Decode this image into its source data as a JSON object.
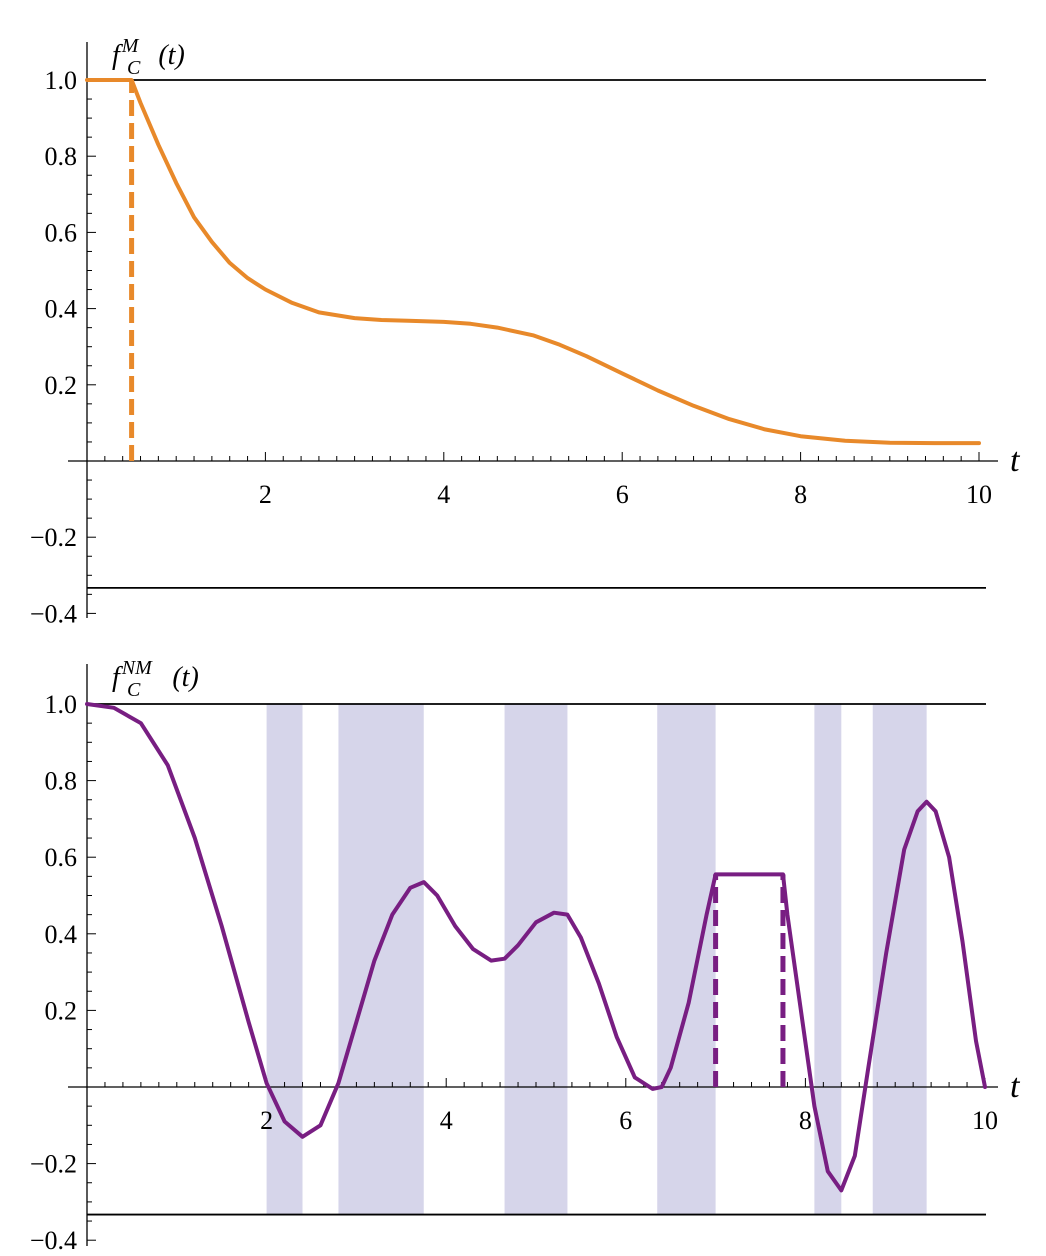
{
  "chart_data": [
    {
      "type": "line",
      "ylabel_main": "f",
      "ylabel_sub": "C",
      "ylabel_sup": "M",
      "ylabel_arg": "(t)",
      "xlabel": "t",
      "xlim": [
        0,
        10
      ],
      "ylim": [
        -0.34,
        1.0
      ],
      "x_ticks": [
        2,
        4,
        6,
        8,
        10
      ],
      "y_ticks": [
        1.0,
        0.8,
        0.6,
        0.4,
        0.2,
        -0.2,
        -0.4
      ],
      "y_tick_labels": [
        "1.0",
        "0.8",
        "0.6",
        "0.4",
        "0.2",
        "−0.2",
        "−0.4"
      ],
      "x_tick_labels": [
        "2",
        "4",
        "6",
        "8",
        "10"
      ],
      "reference_lines": [
        1.0,
        -0.333
      ],
      "series": [
        {
          "color": "#E8892A",
          "x": [
            0.0,
            0.5,
            0.6,
            0.8,
            1.0,
            1.2,
            1.4,
            1.6,
            1.8,
            2.0,
            2.3,
            2.6,
            3.0,
            3.3,
            3.6,
            4.0,
            4.3,
            4.6,
            5.0,
            5.3,
            5.6,
            6.0,
            6.4,
            6.8,
            7.2,
            7.6,
            8.0,
            8.5,
            9.0,
            9.5,
            10.0
          ],
          "y": [
            1.0,
            1.0,
            0.94,
            0.83,
            0.73,
            0.64,
            0.575,
            0.52,
            0.48,
            0.45,
            0.415,
            0.39,
            0.375,
            0.37,
            0.368,
            0.365,
            0.36,
            0.35,
            0.33,
            0.305,
            0.275,
            0.23,
            0.185,
            0.145,
            0.11,
            0.083,
            0.065,
            0.053,
            0.048,
            0.047,
            0.047
          ]
        }
      ],
      "dashed_markers": [
        {
          "x": 0.5,
          "y_from": 0.0,
          "y_to": 1.0,
          "color": "#E8892A"
        }
      ],
      "shaded_x_ranges": []
    },
    {
      "type": "line",
      "ylabel_main": "f",
      "ylabel_sub": "C",
      "ylabel_sup": "NM",
      "ylabel_arg": "(t)",
      "xlabel": "t",
      "xlim": [
        0,
        10
      ],
      "ylim": [
        -0.34,
        1.0
      ],
      "x_ticks": [
        2,
        4,
        6,
        8,
        10
      ],
      "y_ticks": [
        1.0,
        0.8,
        0.6,
        0.4,
        0.2,
        -0.2,
        -0.4
      ],
      "y_tick_labels": [
        "1.0",
        "0.8",
        "0.6",
        "0.4",
        "0.2",
        "−0.2",
        "−0.4"
      ],
      "x_tick_labels": [
        "2",
        "4",
        "6",
        "8",
        "10"
      ],
      "reference_lines": [
        1.0,
        -0.333
      ],
      "shade_color": "#D6D5EA",
      "shaded_x_ranges": [
        [
          2.0,
          2.4
        ],
        [
          2.8,
          3.75
        ],
        [
          4.65,
          5.35
        ],
        [
          6.35,
          7.0
        ],
        [
          8.1,
          8.4
        ],
        [
          8.75,
          9.35
        ]
      ],
      "series": [
        {
          "color": "#781E82",
          "x": [
            0.0,
            0.3,
            0.6,
            0.9,
            1.2,
            1.5,
            1.8,
            2.0,
            2.2,
            2.4,
            2.6,
            2.8,
            3.0,
            3.2,
            3.4,
            3.6,
            3.75,
            3.9,
            4.1,
            4.3,
            4.5,
            4.65,
            4.8,
            5.0,
            5.2,
            5.35,
            5.5,
            5.7,
            5.9,
            6.1,
            6.3,
            6.4,
            6.5,
            6.7,
            6.9,
            7.0,
            7.75,
            7.8,
            7.95,
            8.1,
            8.25,
            8.4,
            8.55,
            8.7,
            8.9,
            9.1,
            9.25,
            9.35,
            9.45,
            9.6,
            9.75,
            9.9,
            10.0
          ],
          "y": [
            1.0,
            0.99,
            0.95,
            0.84,
            0.65,
            0.42,
            0.17,
            0.01,
            -0.09,
            -0.13,
            -0.1,
            0.01,
            0.17,
            0.33,
            0.45,
            0.52,
            0.535,
            0.5,
            0.42,
            0.36,
            0.33,
            0.335,
            0.37,
            0.43,
            0.455,
            0.45,
            0.39,
            0.27,
            0.13,
            0.025,
            -0.005,
            0.0,
            0.05,
            0.22,
            0.45,
            0.555,
            0.555,
            0.45,
            0.2,
            -0.05,
            -0.22,
            -0.27,
            -0.18,
            0.05,
            0.35,
            0.62,
            0.72,
            0.745,
            0.72,
            0.6,
            0.38,
            0.12,
            0.0
          ]
        }
      ],
      "plateau": {
        "x_from": 7.0,
        "x_to": 7.75,
        "y": 0.555
      },
      "dashed_markers": [
        {
          "x": 7.0,
          "y_from": 0.0,
          "y_to": 0.555,
          "color": "#781E82"
        },
        {
          "x": 7.75,
          "y_from": 0.0,
          "y_to": 0.555,
          "color": "#781E82"
        }
      ]
    }
  ]
}
